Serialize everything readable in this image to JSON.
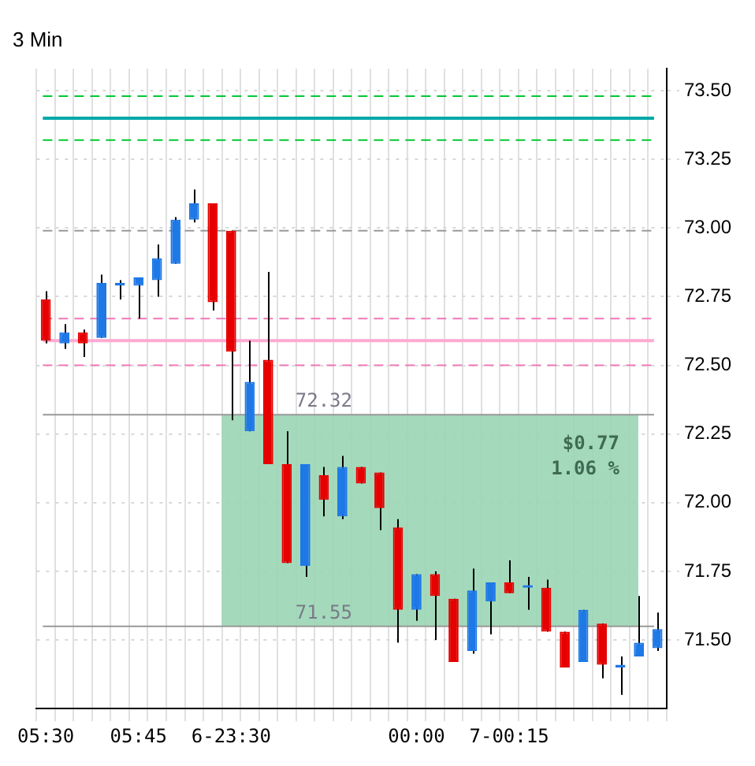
{
  "chart_data": {
    "type": "candlestick",
    "title": "3 Min",
    "categories": [
      "05:30",
      null,
      null,
      null,
      null,
      "05:45",
      null,
      null,
      null,
      null,
      "6-23:30",
      null,
      null,
      null,
      null,
      null,
      null,
      null,
      null,
      null,
      "00:00",
      null,
      null,
      null,
      null,
      "7-00:15",
      null,
      null,
      null,
      null,
      null,
      null,
      null,
      null
    ],
    "ohlc": [
      [
        72.74,
        72.77,
        72.58,
        72.59
      ],
      [
        72.58,
        72.65,
        72.56,
        72.62
      ],
      [
        72.62,
        72.63,
        72.53,
        72.58
      ],
      [
        72.6,
        72.83,
        72.6,
        72.8
      ],
      [
        72.79,
        72.81,
        72.74,
        72.8
      ],
      [
        72.79,
        72.82,
        72.67,
        72.82
      ],
      [
        72.81,
        72.94,
        72.75,
        72.89
      ],
      [
        72.87,
        73.04,
        72.87,
        73.03
      ],
      [
        73.03,
        73.14,
        73.02,
        73.09
      ],
      [
        73.09,
        73.09,
        72.7,
        72.73
      ],
      [
        72.99,
        72.99,
        72.3,
        72.55
      ],
      [
        72.26,
        72.59,
        72.26,
        72.44
      ],
      [
        72.52,
        72.84,
        72.14,
        72.14
      ],
      [
        72.14,
        72.26,
        71.78,
        71.78
      ],
      [
        71.77,
        72.14,
        71.73,
        72.14
      ],
      [
        72.1,
        72.13,
        71.95,
        72.01
      ],
      [
        71.95,
        72.17,
        71.94,
        72.13
      ],
      [
        72.13,
        72.13,
        72.07,
        72.07
      ],
      [
        72.11,
        72.11,
        71.9,
        71.98
      ],
      [
        71.91,
        71.94,
        71.49,
        71.61
      ],
      [
        71.61,
        71.74,
        71.57,
        71.74
      ],
      [
        71.74,
        71.75,
        71.5,
        71.66
      ],
      [
        71.65,
        71.65,
        71.42,
        71.42
      ],
      [
        71.46,
        71.76,
        71.45,
        71.68
      ],
      [
        71.64,
        71.71,
        71.52,
        71.71
      ],
      [
        71.71,
        71.79,
        71.67,
        71.67
      ],
      [
        71.69,
        71.73,
        71.61,
        71.7
      ],
      [
        71.69,
        71.72,
        71.53,
        71.53
      ],
      [
        71.53,
        71.53,
        71.4,
        71.4
      ],
      [
        71.42,
        71.61,
        71.42,
        71.61
      ],
      [
        71.56,
        71.56,
        71.36,
        71.41
      ],
      [
        71.4,
        71.44,
        71.3,
        71.41
      ],
      [
        71.44,
        71.66,
        71.44,
        71.49
      ],
      [
        71.47,
        71.6,
        71.46,
        71.54
      ]
    ],
    "colors": [
      "#e60000",
      "#1e78e6",
      "#e60000",
      "#1e78e6",
      "#1e78e6",
      "#1e78e6",
      "#1e78e6",
      "#1e78e6",
      "#1e78e6",
      "#e60000",
      "#e60000",
      "#1e78e6",
      "#e60000",
      "#e60000",
      "#1e78e6",
      "#e60000",
      "#1e78e6",
      "#e60000",
      "#e60000",
      "#e60000",
      "#1e78e6",
      "#e60000",
      "#e60000",
      "#1e78e6",
      "#1e78e6",
      "#e60000",
      "#1e78e6",
      "#e60000",
      "#e60000",
      "#1e78e6",
      "#e60000",
      "#1e78e6",
      "#1e78e6",
      "#1e78e6"
    ],
    "ylim": [
      71.25,
      73.58
    ],
    "yticks": [
      {
        "value": 71.5,
        "label": "71.50"
      },
      {
        "value": 71.75,
        "label": "71.75"
      },
      {
        "value": 72,
        "label": "72.00"
      },
      {
        "value": 72.25,
        "label": "72.25"
      },
      {
        "value": 72.5,
        "label": "72.50"
      },
      {
        "value": 72.75,
        "label": "72.75"
      },
      {
        "value": 73,
        "label": "73.00"
      },
      {
        "value": 73.25,
        "label": "73.25"
      },
      {
        "value": 73.5,
        "label": "73.50"
      }
    ],
    "ref_lines": [
      {
        "axis": "y",
        "value": 73.48,
        "color": "#00c832",
        "line_style": "dashed"
      },
      {
        "axis": "y",
        "value": 73.4,
        "color": "#00a8a8",
        "line_style": "solid"
      },
      {
        "axis": "y",
        "value": 73.32,
        "color": "#00c832",
        "line_style": "dashed"
      },
      {
        "axis": "y",
        "value": 72.99,
        "color": "#999999",
        "line_style": "dashed"
      },
      {
        "axis": "y",
        "value": 72.67,
        "color": "#f078b4",
        "line_style": "dashed"
      },
      {
        "axis": "y",
        "value": 72.59,
        "color": "#ffaad2",
        "line_style": "solid"
      },
      {
        "axis": "y",
        "value": 72.5,
        "color": "#f078b4",
        "line_style": "dashed"
      },
      {
        "axis": "y",
        "value": 72.32,
        "label": "72.32",
        "color": "#999999",
        "line_style": "solid"
      },
      {
        "axis": "y",
        "value": 71.55,
        "label": "71.55",
        "color": "#999999",
        "line_style": "solid"
      }
    ],
    "bands": [
      {
        "axis": "y",
        "from": 71.55,
        "to": 72.32,
        "label": "$0.77",
        "color": "#9ad6b4"
      }
    ],
    "annotations": [
      "1.06 %"
    ],
    "grid": true,
    "legend": false
  }
}
